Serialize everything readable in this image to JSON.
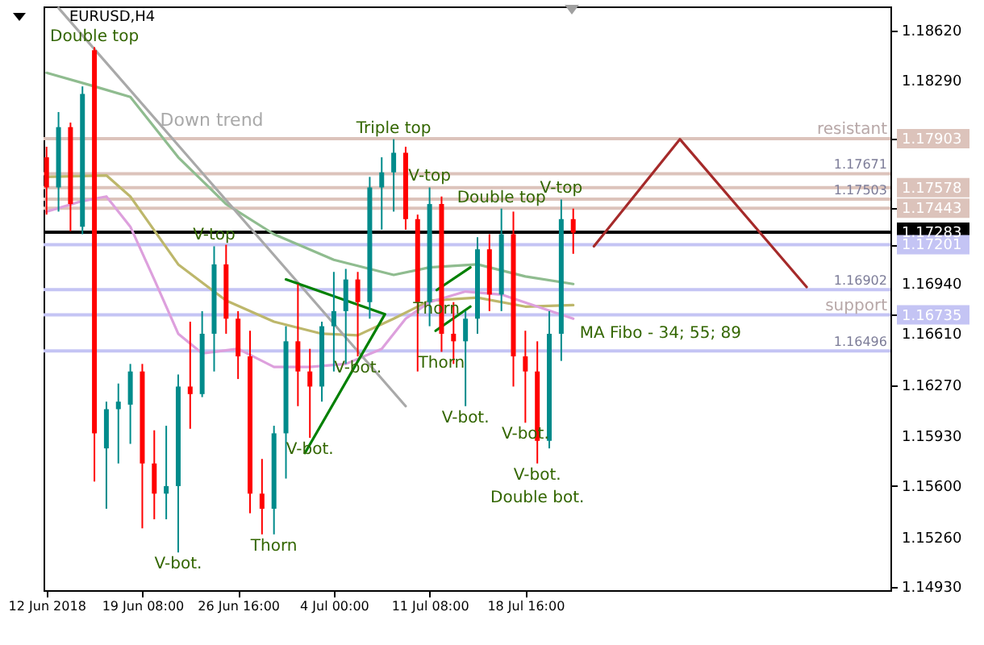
{
  "chart_data": {
    "type": "candlestick",
    "title": "EURUSD,H4",
    "x": [
      "2018-06-12T00:00",
      "2018-06-12T22:00",
      "2018-06-13T20:00",
      "2018-06-14T18:00",
      "2018-06-15T16:00",
      "2018-06-16T14:00",
      "2018-06-17T12:00",
      "2018-06-18T10:00",
      "2018-06-19T08:00",
      "2018-06-20T06:00",
      "2018-06-21T04:00",
      "2018-06-22T02:00",
      "2018-06-23T00:00",
      "2018-06-23T22:00",
      "2018-06-24T20:00",
      "2018-06-25T18:00",
      "2018-06-26T16:00",
      "2018-06-27T14:00",
      "2018-06-28T12:00",
      "2018-06-29T10:00",
      "2018-06-30T08:00",
      "2018-07-01T06:00",
      "2018-07-02T04:00",
      "2018-07-03T02:00",
      "2018-07-04T00:00",
      "2018-07-04T22:00",
      "2018-07-05T20:00",
      "2018-07-06T18:00",
      "2018-07-07T16:00",
      "2018-07-08T14:00",
      "2018-07-09T12:00",
      "2018-07-10T10:00",
      "2018-07-11T08:00",
      "2018-07-12T06:00",
      "2018-07-13T04:00",
      "2018-07-14T02:00",
      "2018-07-15T00:00",
      "2018-07-15T22:00",
      "2018-07-16T20:00",
      "2018-07-17T18:00",
      "2018-07-18T16:00",
      "2018-07-19T14:00",
      "2018-07-20T12:00",
      "2018-07-21T10:00",
      "2018-07-22T08:00"
    ],
    "ohlc": [
      [
        1.1778,
        1.1785,
        1.174,
        1.1758
      ],
      [
        1.1758,
        1.1808,
        1.1742,
        1.1798
      ],
      [
        1.1798,
        1.1801,
        1.1729,
        1.1747
      ],
      [
        1.1732,
        1.1825,
        1.1727,
        1.182
      ],
      [
        1.1849,
        1.1851,
        1.1563,
        1.1595
      ],
      [
        1.1585,
        1.1616,
        1.1545,
        1.1611
      ],
      [
        1.1611,
        1.1628,
        1.1575,
        1.1616
      ],
      [
        1.1614,
        1.1641,
        1.1588,
        1.1636
      ],
      [
        1.1636,
        1.1641,
        1.1532,
        1.1575
      ],
      [
        1.1575,
        1.1597,
        1.1538,
        1.1555
      ],
      [
        1.1555,
        1.16,
        1.1538,
        1.156
      ],
      [
        1.156,
        1.1634,
        1.1516,
        1.1626
      ],
      [
        1.1626,
        1.1669,
        1.1598,
        1.1621
      ],
      [
        1.1621,
        1.1676,
        1.1619,
        1.1661
      ],
      [
        1.1661,
        1.1719,
        1.1636,
        1.1707
      ],
      [
        1.1707,
        1.172,
        1.1661,
        1.1671
      ],
      [
        1.1671,
        1.1676,
        1.1631,
        1.1646
      ],
      [
        1.1646,
        1.1663,
        1.1542,
        1.1555
      ],
      [
        1.1555,
        1.1578,
        1.1528,
        1.1545
      ],
      [
        1.1545,
        1.16,
        1.1528,
        1.1595
      ],
      [
        1.1595,
        1.1666,
        1.1565,
        1.1656
      ],
      [
        1.1656,
        1.1694,
        1.1613,
        1.1636
      ],
      [
        1.1636,
        1.1651,
        1.1592,
        1.1626
      ],
      [
        1.1626,
        1.1669,
        1.1616,
        1.1666
      ],
      [
        1.1666,
        1.1702,
        1.1636,
        1.1676
      ],
      [
        1.1676,
        1.1704,
        1.1641,
        1.1697
      ],
      [
        1.1697,
        1.1702,
        1.1646,
        1.1682
      ],
      [
        1.1682,
        1.1765,
        1.1671,
        1.1758
      ],
      [
        1.1758,
        1.1778,
        1.173,
        1.1768
      ],
      [
        1.1768,
        1.179,
        1.1742,
        1.1781
      ],
      [
        1.1781,
        1.1785,
        1.173,
        1.1737
      ],
      [
        1.1737,
        1.174,
        1.1636,
        1.1682
      ],
      [
        1.1682,
        1.1758,
        1.1666,
        1.1747
      ],
      [
        1.1747,
        1.1752,
        1.1649,
        1.1661
      ],
      [
        1.1661,
        1.1682,
        1.1641,
        1.1656
      ],
      [
        1.1656,
        1.1676,
        1.1613,
        1.1671
      ],
      [
        1.1671,
        1.1725,
        1.1661,
        1.1717
      ],
      [
        1.1717,
        1.1727,
        1.1676,
        1.1687
      ],
      [
        1.1687,
        1.1744,
        1.1676,
        1.1727
      ],
      [
        1.1727,
        1.1742,
        1.1626,
        1.1646
      ],
      [
        1.1646,
        1.1663,
        1.1602,
        1.1636
      ],
      [
        1.1636,
        1.1656,
        1.1575,
        1.159
      ],
      [
        1.159,
        1.1676,
        1.1585,
        1.1661
      ],
      [
        1.1661,
        1.175,
        1.1643,
        1.1737
      ],
      [
        1.1737,
        1.1744,
        1.1714,
        1.1728
      ]
    ],
    "series": [
      {
        "type": "line",
        "color": "#8fbc8f",
        "x": [
          "2018-06-12T00:00",
          "2018-06-15T16:00",
          "2018-06-18T10:00",
          "2018-06-22T02:00",
          "2018-06-25T18:00",
          "2018-06-29T10:00",
          "2018-07-04T00:00",
          "2018-07-08T14:00",
          "2018-07-11T08:00",
          "2018-07-15T00:00",
          "2018-07-18T16:00",
          "2018-07-22T08:00"
        ],
        "values": [
          1.1834,
          1.1825,
          1.1818,
          1.1778,
          1.1747,
          1.1727,
          1.171,
          1.17,
          1.1705,
          1.1707,
          1.1699,
          1.1694
        ]
      },
      {
        "type": "line",
        "color": "#bdb76b",
        "x": [
          "2018-06-12T00:00",
          "2018-06-16T14:00",
          "2018-06-18T10:00",
          "2018-06-22T02:00",
          "2018-06-25T18:00",
          "2018-06-29T10:00",
          "2018-07-03T02:00",
          "2018-07-05T20:00",
          "2018-07-08T14:00",
          "2018-07-11T08:00",
          "2018-07-15T00:00",
          "2018-07-18T16:00",
          "2018-07-22T08:00"
        ],
        "values": [
          1.1765,
          1.1766,
          1.1752,
          1.1707,
          1.1683,
          1.1669,
          1.1661,
          1.166,
          1.1671,
          1.1683,
          1.1685,
          1.1679,
          1.168
        ]
      },
      {
        "type": "line",
        "color": "#dda0dd",
        "x": [
          "2018-06-12T00:00",
          "2018-06-14T18:00",
          "2018-06-16T14:00",
          "2018-06-18T10:00",
          "2018-06-20T06:00",
          "2018-06-22T02:00",
          "2018-06-23T22:00",
          "2018-06-26T16:00",
          "2018-06-29T10:00",
          "2018-07-02T04:00",
          "2018-07-04T22:00",
          "2018-07-07T16:00",
          "2018-07-09T12:00",
          "2018-07-11T08:00",
          "2018-07-14T02:00",
          "2018-07-16T20:00",
          "2018-07-19T14:00",
          "2018-07-22T08:00"
        ],
        "values": [
          1.1742,
          1.1749,
          1.1752,
          1.1732,
          1.1697,
          1.1661,
          1.1648,
          1.1651,
          1.1639,
          1.1639,
          1.1641,
          1.1651,
          1.1671,
          1.1682,
          1.1689,
          1.1687,
          1.1679,
          1.1671
        ]
      },
      {
        "type": "line",
        "name": "Down trend",
        "color": "#a9a9a9",
        "x": [
          "2018-06-12T22:00",
          "2018-07-09T12:00"
        ],
        "values": [
          1.1877,
          1.1613
        ]
      },
      {
        "type": "line",
        "color": "#008000",
        "x": [
          "2018-06-30T08:00",
          "2018-07-07T22:00",
          "2018-07-01T19:00"
        ],
        "values": [
          1.1697,
          1.1674,
          1.1582
        ]
      },
      {
        "type": "line",
        "color": "#008000",
        "x": [
          "2018-07-11T21:00",
          "2018-07-14T11:00"
        ],
        "values": [
          1.169,
          1.1705
        ]
      },
      {
        "type": "line",
        "color": "#008000",
        "x": [
          "2018-07-11T19:00",
          "2018-07-14T11:00"
        ],
        "values": [
          1.1663,
          1.1679
        ]
      },
      {
        "type": "line",
        "color": "#a52a2a",
        "x": [
          "2018-07-23T22:00",
          "2018-07-30T12:00",
          "2018-08-09T05:00"
        ],
        "values": [
          1.1719,
          1.179,
          1.1692
        ]
      }
    ],
    "xlim": [
      "2018-06-11T18:30",
      "2018-08-15T15:00"
    ],
    "xticks": [
      {
        "value": "2018-06-12T00:00",
        "label": "12 Jun 2018"
      },
      {
        "value": "2018-06-19T08:00",
        "label": "19 Jun 08:00"
      },
      {
        "value": "2018-06-26T16:00",
        "label": "26 Jun 16:00"
      },
      {
        "value": "2018-07-04T00:00",
        "label": "4 Jul 00:00"
      },
      {
        "value": "2018-07-11T08:00",
        "label": "11 Jul 08:00"
      },
      {
        "value": "2018-07-18T16:00",
        "label": "18 Jul 16:00"
      }
    ],
    "ylim": [
      1.1491,
      1.1878
    ],
    "yticks": [
      {
        "value": 1.1862,
        "label": "1.18620"
      },
      {
        "value": 1.1829,
        "label": "1.18290"
      },
      {
        "value": 1.17903,
        "label": "1.17903"
      },
      {
        "value": 1.17578,
        "label": "1.17578"
      },
      {
        "value": 1.17443,
        "label": "1.17443"
      },
      {
        "value": 1.17283,
        "label": "1.17283"
      },
      {
        "value": 1.17201,
        "label": "1.17201"
      },
      {
        "value": 1.1694,
        "label": "1.16940"
      },
      {
        "value": 1.16735,
        "label": "1.16735"
      },
      {
        "value": 1.1661,
        "label": "1.16610"
      },
      {
        "value": 1.1627,
        "label": "1.16270"
      },
      {
        "value": 1.1593,
        "label": "1.15930"
      },
      {
        "value": 1.156,
        "label": "1.15600"
      },
      {
        "value": 1.1526,
        "label": "1.15260"
      },
      {
        "value": 1.1493,
        "label": "1.14930"
      }
    ],
    "ref_lines": [
      {
        "axis": "y",
        "value": 1.17903,
        "color": "#dcc3bb"
      },
      {
        "axis": "y",
        "value": 1.17671,
        "label": "1.17671",
        "color": "#dcc3bb"
      },
      {
        "axis": "y",
        "value": 1.17578,
        "color": "#dcc3bb"
      },
      {
        "axis": "y",
        "value": 1.17503,
        "label": "1.17503",
        "color": "#dcc3bb"
      },
      {
        "axis": "y",
        "value": 1.17443,
        "color": "#dcc3bb"
      },
      {
        "axis": "y",
        "value": 1.17283,
        "color": "#000000"
      },
      {
        "axis": "y",
        "value": 1.17201,
        "color": "#c4c4f4"
      },
      {
        "axis": "y",
        "value": 1.16902,
        "label": "1.16902",
        "color": "#c4c4f4"
      },
      {
        "axis": "y",
        "value": 1.16735,
        "color": "#c4c4f4"
      },
      {
        "axis": "y",
        "value": 1.16496,
        "label": "1.16496",
        "color": "#c4c4f4"
      }
    ],
    "annotations": [
      {
        "text": "Double top",
        "x": "2018-06-15T16:00",
        "y": 1.1851
      },
      {
        "text": "Triple top",
        "x": "2018-07-08T14:00",
        "y": 1.179
      },
      {
        "text": "V-top",
        "x": "2018-06-24T20:00",
        "y": 1.1719
      },
      {
        "text": "V-top",
        "x": "2018-07-11T08:00",
        "y": 1.1758
      },
      {
        "text": "Double top",
        "x": "2018-07-16T20:00",
        "y": 1.1744
      },
      {
        "text": "V-top",
        "x": "2018-07-21T10:00",
        "y": 1.175
      },
      {
        "text": "Thorn",
        "x": "2018-07-09T14:00",
        "y": 1.1687
      },
      {
        "text": "Thorn",
        "x": "2018-07-12T06:00",
        "y": 1.1649
      },
      {
        "text": "Thorn",
        "x": "2018-06-29T10:00",
        "y": 1.1528
      },
      {
        "text": "V-bot.",
        "x": "2018-06-22T02:00",
        "y": 1.1516
      },
      {
        "text": "V-bot.",
        "x": "2018-07-02T04:00",
        "y": 1.1592
      },
      {
        "text": "V-bot.",
        "x": "2018-07-05T20:00",
        "y": 1.1646
      },
      {
        "text": "V-bot.",
        "x": "2018-07-14T02:00",
        "y": 1.1613
      },
      {
        "text": "V-bot.",
        "x": "2018-07-18T16:00",
        "y": 1.1602
      },
      {
        "text": "V-bot.",
        "x": "2018-07-19T14:00",
        "y": 1.1575
      },
      {
        "text": "Double bot.",
        "x": "2018-07-19T14:00",
        "y": 1.1575
      },
      {
        "text": "MA Fibo - 34; 55; 89",
        "x": "2018-07-22T08:00",
        "y": 1.1671
      },
      {
        "text": "resistant",
        "y": 1.17903
      },
      {
        "text": "support",
        "y": 1.16735
      }
    ]
  }
}
